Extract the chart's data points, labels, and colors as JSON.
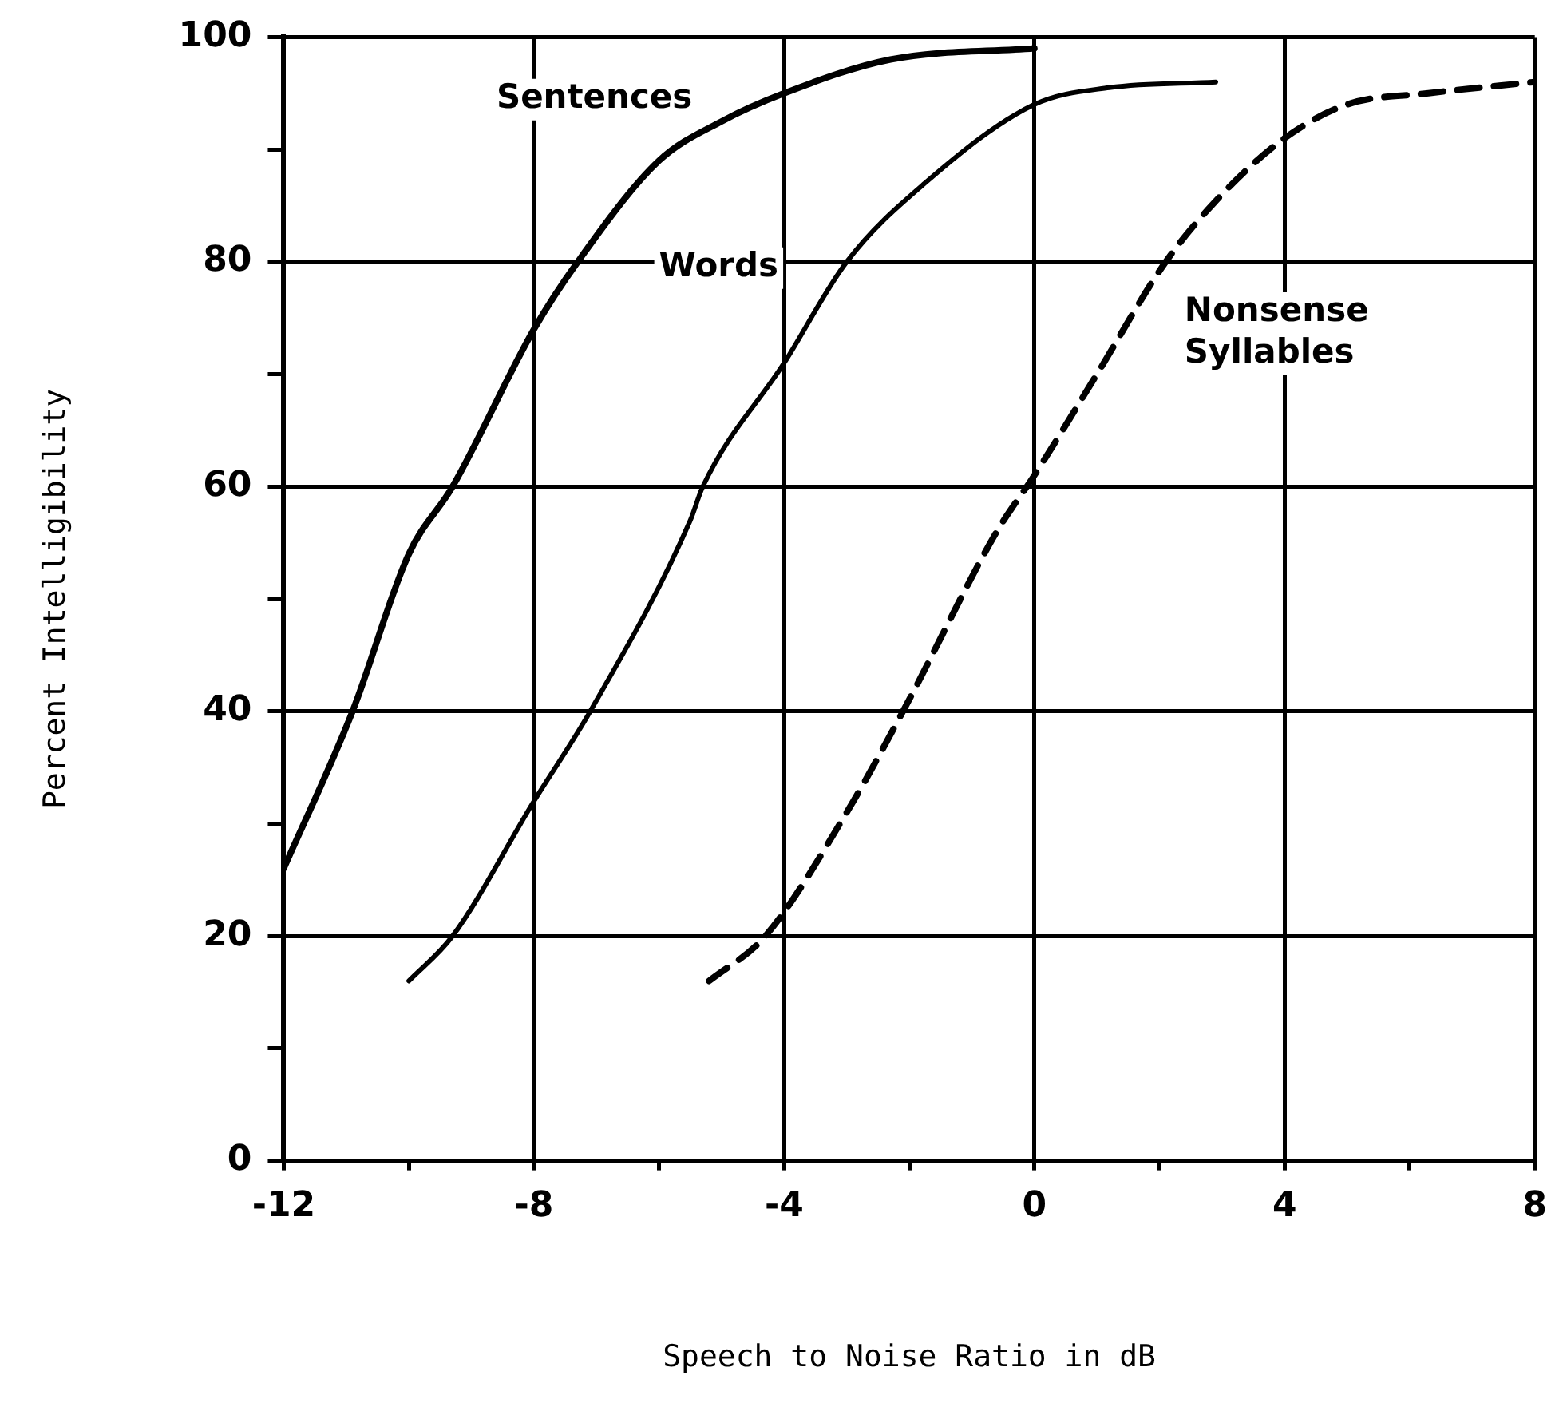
{
  "chart_data": {
    "type": "line",
    "xlabel": "Speech to Noise Ratio in dB",
    "ylabel": "Percent Intelligibility",
    "xlim": [
      -12,
      8
    ],
    "ylim": [
      0,
      100
    ],
    "xticks": [
      -12,
      {
        "value": -10,
        "label": null
      },
      -8,
      {
        "value": -6,
        "label": null
      },
      -4,
      {
        "value": -2,
        "label": null
      },
      0,
      {
        "value": 2,
        "label": null
      },
      4,
      {
        "value": 6,
        "label": null
      },
      8
    ],
    "yticks": [
      0,
      {
        "value": 10,
        "label": null
      },
      20,
      {
        "value": 30,
        "label": null
      },
      40,
      {
        "value": 50,
        "label": null
      },
      60,
      {
        "value": 70,
        "label": null
      },
      80,
      {
        "value": 90,
        "label": null
      },
      100
    ],
    "grid": true,
    "legend": false,
    "marker": "none",
    "series": [
      {
        "name": "Sentences",
        "color": "#000000",
        "line_style": "solid",
        "x": [
          -12,
          -10.9,
          -10,
          -9.3,
          -8,
          -7.3,
          -6,
          -5,
          -4,
          -2.3,
          0
        ],
        "values": [
          26,
          40,
          54,
          60,
          74,
          80,
          89,
          92.5,
          95,
          98,
          99
        ]
      },
      {
        "name": "Words",
        "color": "#000000",
        "line_style": "solid",
        "x": [
          -10,
          -9.3,
          -8,
          -7.1,
          -5.5,
          -5.3,
          -4,
          -3,
          -1.75,
          0,
          1.2,
          2.9
        ],
        "values": [
          16,
          20,
          32,
          40,
          57,
          60,
          71,
          80,
          87,
          94,
          95.5,
          96
        ]
      },
      {
        "name": "Nonsense Syllables",
        "color": "#000000",
        "line_style": "dashed",
        "x": [
          -5.2,
          -4.3,
          -3,
          -2.1,
          -0.6,
          0,
          1,
          2.1,
          3,
          4,
          5,
          6.3,
          8
        ],
        "values": [
          16,
          20,
          31,
          40,
          56,
          61,
          70,
          80,
          86,
          91,
          94,
          95,
          96
        ]
      }
    ]
  }
}
